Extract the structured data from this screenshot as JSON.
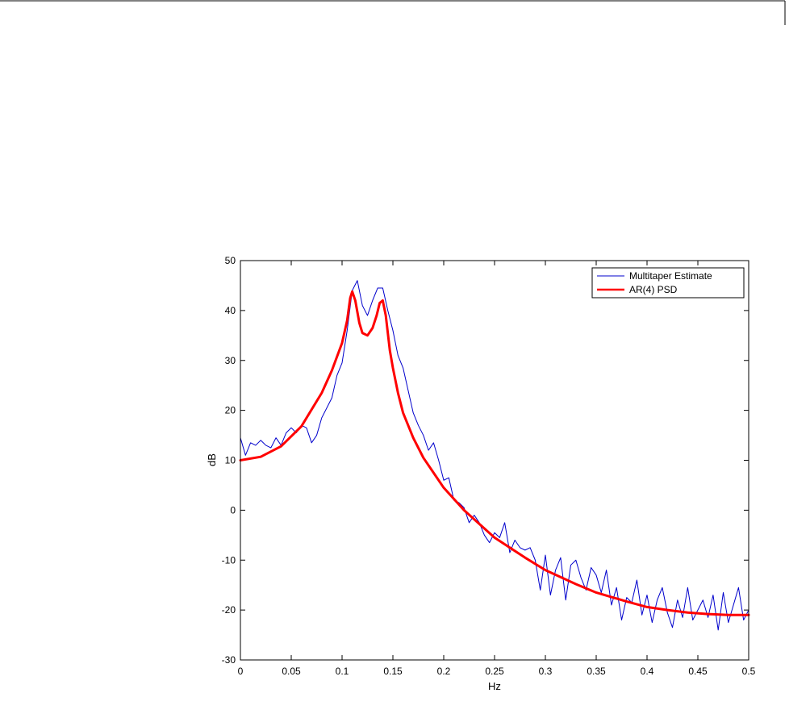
{
  "page": {
    "background": "#ffffff"
  },
  "chart_data": {
    "type": "line",
    "title": "",
    "xlabel": "Hz",
    "ylabel": "dB",
    "xlim": [
      0,
      0.5
    ],
    "ylim": [
      -30,
      50
    ],
    "x_ticks": [
      0,
      0.05,
      0.1,
      0.15,
      0.2,
      0.25,
      0.3,
      0.35,
      0.4,
      0.45,
      0.5
    ],
    "x_tick_labels": [
      "0",
      "0.05",
      "0.1",
      "0.15",
      "0.2",
      "0.25",
      "0.3",
      "0.35",
      "0.4",
      "0.45",
      "0.5"
    ],
    "y_ticks": [
      -30,
      -20,
      -10,
      0,
      10,
      20,
      30,
      40,
      50
    ],
    "y_tick_labels": [
      "-30",
      "-20",
      "-10",
      "0",
      "10",
      "20",
      "30",
      "40",
      "50"
    ],
    "grid": false,
    "legend_position": "top-right",
    "series": [
      {
        "name": "Multitaper Estimate",
        "color": "#0000cc",
        "x": [
          0,
          0.005,
          0.01,
          0.015,
          0.02,
          0.025,
          0.03,
          0.035,
          0.04,
          0.045,
          0.05,
          0.055,
          0.06,
          0.065,
          0.07,
          0.075,
          0.08,
          0.085,
          0.09,
          0.095,
          0.1,
          0.105,
          0.11,
          0.115,
          0.12,
          0.125,
          0.13,
          0.135,
          0.14,
          0.145,
          0.15,
          0.155,
          0.16,
          0.165,
          0.17,
          0.175,
          0.18,
          0.185,
          0.19,
          0.195,
          0.2,
          0.205,
          0.21,
          0.215,
          0.22,
          0.225,
          0.23,
          0.235,
          0.24,
          0.245,
          0.25,
          0.255,
          0.26,
          0.265,
          0.27,
          0.275,
          0.28,
          0.285,
          0.29,
          0.295,
          0.3,
          0.305,
          0.31,
          0.315,
          0.32,
          0.325,
          0.33,
          0.335,
          0.34,
          0.345,
          0.35,
          0.355,
          0.36,
          0.365,
          0.37,
          0.375,
          0.38,
          0.385,
          0.39,
          0.395,
          0.4,
          0.405,
          0.41,
          0.415,
          0.42,
          0.425,
          0.43,
          0.435,
          0.44,
          0.445,
          0.45,
          0.455,
          0.46,
          0.465,
          0.47,
          0.475,
          0.48,
          0.485,
          0.49,
          0.495,
          0.5
        ],
        "y": [
          14.5,
          11,
          13.5,
          13,
          14,
          13,
          12.5,
          14.5,
          13,
          15.5,
          16.5,
          15.5,
          17,
          16.5,
          13.5,
          15,
          18.5,
          20.5,
          22.5,
          27,
          29.5,
          36,
          44,
          46,
          41,
          39,
          42,
          44.5,
          44.5,
          40,
          36,
          31,
          28.5,
          24,
          19.5,
          17,
          15,
          12,
          13.5,
          10,
          6,
          6.5,
          2,
          1.5,
          0.5,
          -2.5,
          -1,
          -2.5,
          -5,
          -6.5,
          -4.5,
          -5.5,
          -2.5,
          -8.5,
          -6,
          -7.5,
          -8,
          -7.5,
          -10,
          -16,
          -9,
          -17,
          -12,
          -9.5,
          -18,
          -11,
          -10,
          -13.5,
          -16,
          -11.5,
          -13,
          -16.5,
          -12,
          -19,
          -15.5,
          -22,
          -17.5,
          -18.5,
          -14,
          -21,
          -17,
          -22.5,
          -18,
          -15.5,
          -20.5,
          -23.5,
          -18,
          -21.5,
          -15.5,
          -22,
          -20,
          -18,
          -21.5,
          -17,
          -24,
          -16.5,
          -22.5,
          -19,
          -15.5,
          -22,
          -20
        ]
      },
      {
        "name": "AR(4) PSD",
        "color": "#ff0000",
        "x": [
          0,
          0.02,
          0.04,
          0.06,
          0.08,
          0.09,
          0.1,
          0.105,
          0.108,
          0.11,
          0.113,
          0.117,
          0.12,
          0.125,
          0.13,
          0.134,
          0.137,
          0.14,
          0.143,
          0.147,
          0.15,
          0.155,
          0.16,
          0.17,
          0.18,
          0.19,
          0.2,
          0.22,
          0.25,
          0.28,
          0.3,
          0.33,
          0.35,
          0.38,
          0.4,
          0.42,
          0.44,
          0.46,
          0.48,
          0.5
        ],
        "y": [
          10,
          10.7,
          12.8,
          16.8,
          23.5,
          28,
          33.5,
          38,
          42.5,
          43.8,
          42,
          37.5,
          35.5,
          35,
          36.5,
          39,
          41.5,
          42,
          39,
          32,
          28.5,
          23.5,
          19.5,
          14.5,
          10.5,
          7.5,
          4.5,
          0,
          -5.5,
          -9.5,
          -12,
          -14.8,
          -16.5,
          -18.3,
          -19.4,
          -20,
          -20.5,
          -20.8,
          -21,
          -21
        ]
      }
    ]
  }
}
